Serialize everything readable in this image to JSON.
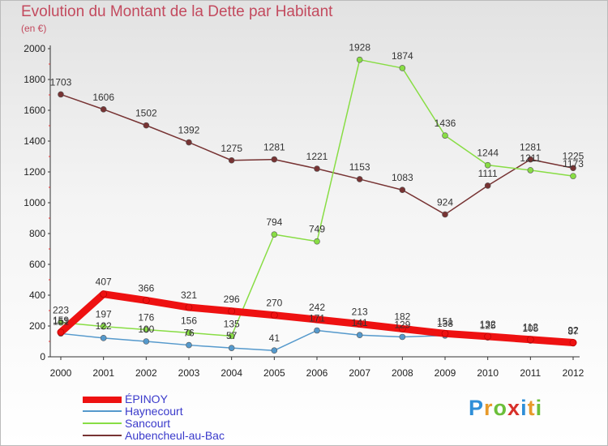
{
  "title": "Evolution du Montant de la Dette par Habitant",
  "subtitle": "(en €)",
  "chart_data": {
    "type": "line",
    "x": [
      "2000",
      "2001",
      "2002",
      "2003",
      "2004",
      "2005",
      "2006",
      "2007",
      "2008",
      "2009",
      "2010",
      "2011",
      "2012"
    ],
    "ylim": [
      0,
      2000
    ],
    "yticks": [
      "0",
      "200",
      "400",
      "600",
      "800",
      "1000",
      "1200",
      "1400",
      "1600",
      "1800",
      "2000"
    ],
    "grid": false,
    "legend_position": "bottom-left",
    "series": [
      {
        "name": "ÉPINOY",
        "color": "#ee1111",
        "values": [
          159,
          407,
          366,
          321,
          296,
          270,
          242,
          213,
          182,
          151,
          132,
          112,
          92
        ],
        "labels": [
          "159",
          "407",
          "366",
          "321",
          "296",
          "270",
          "242",
          "213",
          "182",
          "151",
          "132",
          "112",
          "92"
        ]
      },
      {
        "name": "Haynecourt",
        "color": "#5599cc",
        "values": [
          151,
          122,
          100,
          76,
          57,
          41,
          171,
          141,
          129,
          138,
          125,
          105,
          87
        ],
        "labels": [
          "151",
          "122",
          "100",
          "76",
          "57",
          "41",
          "171",
          "141",
          "129",
          "138",
          "125",
          "105",
          "87"
        ]
      },
      {
        "name": "Sancourt",
        "color": "#88dd44",
        "values": [
          223,
          197,
          176,
          156,
          135,
          794,
          749,
          1928,
          1874,
          1436,
          1244,
          1211,
          1173
        ],
        "labels": [
          "223",
          "197",
          "176",
          "156",
          "135",
          "794",
          "749",
          "1928",
          "1874",
          "1436",
          "1244",
          "1211",
          "1173"
        ]
      },
      {
        "name": "Aubencheul-au-Bac",
        "color": "#773333",
        "values": [
          1703,
          1606,
          1502,
          1392,
          1275,
          1281,
          1221,
          1153,
          1083,
          924,
          1111,
          1281,
          1225
        ],
        "labels": [
          "1703",
          "1606",
          "1502",
          "1392",
          "1275",
          "1281",
          "1221",
          "1153",
          "1083",
          "924",
          "1111",
          "1281",
          "1225"
        ]
      }
    ]
  },
  "logo": {
    "letters": [
      "P",
      "r",
      "o",
      "x",
      "i",
      "t",
      "i"
    ],
    "colors": [
      "#2f8fd8",
      "#e89a2a",
      "#6bbf3a",
      "#d8302a",
      "#2f8fd8",
      "#e89a2a",
      "#6bbf3a"
    ]
  }
}
